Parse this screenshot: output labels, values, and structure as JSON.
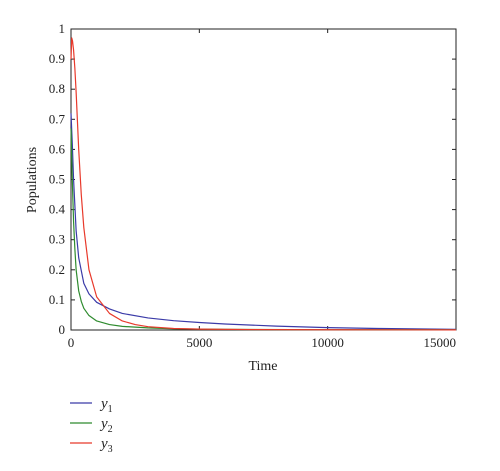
{
  "chart_data": {
    "type": "line",
    "title": "",
    "xlabel": "Time",
    "ylabel": "Populations",
    "xlim": [
      0,
      15000
    ],
    "ylim": [
      0,
      1
    ],
    "xticks": [
      0,
      5000,
      10000,
      15000
    ],
    "xtick_labels": [
      "0",
      "5000",
      "10000",
      "15000"
    ],
    "yticks": [
      0,
      0.1,
      0.2,
      0.3,
      0.4,
      0.5,
      0.6,
      0.7,
      0.8,
      0.9,
      1
    ],
    "ytick_labels": [
      "0",
      "0.1",
      "0.2",
      "0.3",
      "0.4",
      "0.5",
      "0.6",
      "0.7",
      "0.8",
      "0.9",
      "1"
    ],
    "grid": false,
    "legend_position": "below-left",
    "series": [
      {
        "name": "y1",
        "legend_base": "y",
        "legend_sub": "1",
        "color": "#3b3ba8",
        "x": [
          0,
          50,
          100,
          200,
          300,
          500,
          700,
          1000,
          1500,
          2000,
          3000,
          4000,
          5000,
          6000,
          8000,
          10000,
          12000,
          15000
        ],
        "y": [
          0.72,
          0.62,
          0.5,
          0.33,
          0.24,
          0.155,
          0.12,
          0.092,
          0.07,
          0.055,
          0.04,
          0.031,
          0.025,
          0.02,
          0.013,
          0.008,
          0.005,
          0.002
        ]
      },
      {
        "name": "y2",
        "legend_base": "y",
        "legend_sub": "2",
        "color": "#2e8b2e",
        "x": [
          0,
          50,
          100,
          150,
          200,
          300,
          400,
          500,
          700,
          1000,
          1500,
          2000,
          3000,
          4000,
          6000,
          10000,
          15000
        ],
        "y": [
          0.67,
          0.5,
          0.36,
          0.27,
          0.2,
          0.13,
          0.095,
          0.072,
          0.048,
          0.03,
          0.018,
          0.012,
          0.007,
          0.004,
          0.002,
          0.001,
          0.0005
        ]
      },
      {
        "name": "y3",
        "legend_base": "y",
        "legend_sub": "3",
        "color": "#e8392b",
        "x": [
          0,
          30,
          60,
          100,
          150,
          200,
          300,
          400,
          500,
          700,
          1000,
          1500,
          2000,
          2500,
          3000,
          4000,
          5000,
          7000,
          10000,
          15000
        ],
        "y": [
          0.9,
          0.97,
          0.96,
          0.93,
          0.87,
          0.79,
          0.6,
          0.45,
          0.34,
          0.2,
          0.11,
          0.055,
          0.03,
          0.018,
          0.011,
          0.005,
          0.003,
          0.0015,
          0.0008,
          0.0003
        ]
      }
    ]
  }
}
